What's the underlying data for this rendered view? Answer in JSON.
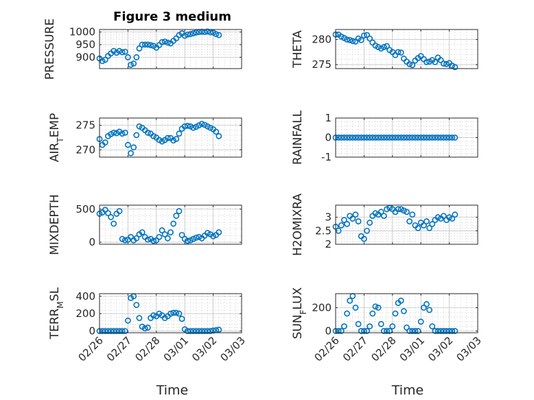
{
  "figure_title": "Figure 3 medium",
  "colors": {
    "marker": "#0072BD",
    "axis": "#262626",
    "grid": "#b8b8b8"
  },
  "chart_data": [
    {
      "type": "scatter",
      "panel": "pressure",
      "ylabel_parts": [
        {
          "t": "PRESSURE"
        }
      ],
      "yticks": [
        900,
        950,
        1000
      ],
      "ytick_labels": [
        "900",
        "950",
        "1000"
      ],
      "ylim": [
        855,
        1010
      ],
      "xticks": [
        0,
        1,
        2,
        3,
        4,
        5
      ],
      "xtick_labels": [
        "02/26",
        "02/27",
        "02/28",
        "03/01",
        "03/02",
        "03/03"
      ],
      "xlim": [
        0,
        5
      ],
      "show_xtick_labels": false,
      "x": [
        0,
        0.1,
        0.2,
        0.3,
        0.4,
        0.5,
        0.6,
        0.7,
        0.8,
        0.9,
        1,
        1.1,
        1.2,
        1.3,
        1.4,
        1.5,
        1.6,
        1.7,
        1.8,
        1.9,
        2,
        2.1,
        2.2,
        2.3,
        2.4,
        2.5,
        2.6,
        2.7,
        2.8,
        2.9,
        3,
        3.1,
        3.2,
        3.3,
        3.4,
        3.5,
        3.6,
        3.7,
        3.8,
        3.9,
        4,
        4.1,
        4.2
      ],
      "y": [
        895,
        885,
        890,
        905,
        915,
        925,
        918,
        925,
        920,
        922,
        900,
        870,
        875,
        900,
        935,
        950,
        950,
        950,
        948,
        945,
        938,
        948,
        960,
        962,
        958,
        955,
        965,
        975,
        988,
        995,
        985,
        990,
        992,
        995,
        998,
        1000,
        1001,
        1000,
        1002,
        999,
        998,
        992,
        988
      ]
    },
    {
      "type": "scatter",
      "panel": "theta",
      "ylabel_parts": [
        {
          "t": "THETA"
        }
      ],
      "yticks": [
        275,
        280
      ],
      "ytick_labels": [
        "275",
        "280"
      ],
      "ylim": [
        274.2,
        282
      ],
      "xticks": [
        0,
        1,
        2,
        3,
        4,
        5
      ],
      "xtick_labels": [
        "02/26",
        "02/27",
        "02/28",
        "03/01",
        "03/02",
        "03/03"
      ],
      "xlim": [
        0,
        5
      ],
      "show_xtick_labels": false,
      "x": [
        0,
        0.1,
        0.2,
        0.3,
        0.4,
        0.5,
        0.6,
        0.7,
        0.8,
        0.9,
        1,
        1.1,
        1.2,
        1.3,
        1.4,
        1.5,
        1.6,
        1.7,
        1.8,
        1.9,
        2,
        2.1,
        2.2,
        2.3,
        2.4,
        2.5,
        2.6,
        2.7,
        2.8,
        2.9,
        3,
        3.1,
        3.2,
        3.3,
        3.4,
        3.5,
        3.6,
        3.7,
        3.8,
        3.9,
        4,
        4.1,
        4.2
      ],
      "y": [
        281,
        281,
        280.6,
        280.3,
        280,
        279.9,
        279.7,
        279.6,
        280.2,
        279.9,
        280.8,
        280.9,
        280.2,
        279.4,
        278.8,
        278.5,
        278.2,
        278.5,
        278.7,
        277.9,
        277.5,
        276.9,
        277.5,
        277.4,
        276.2,
        275.6,
        275.1,
        274.9,
        275.8,
        276.3,
        276.7,
        276.1,
        275.5,
        275.6,
        275.9,
        275.5,
        276.4,
        275.9,
        275.2,
        275.1,
        275.3,
        274.8,
        274.5
      ]
    },
    {
      "type": "scatter",
      "panel": "air_temp",
      "ylabel_parts": [
        {
          "t": "AIR"
        },
        {
          "t": "T",
          "sub": true
        },
        {
          "t": "EMP"
        }
      ],
      "yticks": [
        270,
        275
      ],
      "ytick_labels": [
        "270",
        "275"
      ],
      "ylim": [
        268.5,
        276.5
      ],
      "xticks": [
        0,
        1,
        2,
        3,
        4,
        5
      ],
      "xtick_labels": [
        "02/26",
        "02/27",
        "02/28",
        "03/01",
        "03/02",
        "03/03"
      ],
      "xlim": [
        0,
        5
      ],
      "show_xtick_labels": false,
      "x": [
        0,
        0.1,
        0.2,
        0.3,
        0.4,
        0.5,
        0.6,
        0.7,
        0.8,
        0.9,
        1,
        1.1,
        1.2,
        1.3,
        1.4,
        1.5,
        1.6,
        1.7,
        1.8,
        1.9,
        2,
        2.1,
        2.2,
        2.3,
        2.4,
        2.5,
        2.6,
        2.7,
        2.8,
        2.9,
        3,
        3.1,
        3.2,
        3.3,
        3.4,
        3.5,
        3.6,
        3.7,
        3.8,
        3.9,
        4,
        4.1,
        4.2
      ],
      "y": [
        272.2,
        271,
        271.5,
        272.8,
        273.2,
        273.5,
        273.4,
        273.7,
        273.3,
        273.5,
        271,
        269.3,
        270.5,
        273,
        274.8,
        274.5,
        274,
        273.5,
        273.3,
        272.8,
        272.5,
        272,
        271.7,
        272,
        272.4,
        272.4,
        271.9,
        272.2,
        273.3,
        274.3,
        274.8,
        274.9,
        274.8,
        274.5,
        274.7,
        275,
        275.3,
        275.1,
        274.8,
        274.5,
        274.2,
        273.7,
        272.8
      ]
    },
    {
      "type": "scatter",
      "panel": "rainfall",
      "ylabel_parts": [
        {
          "t": "RAINFALL"
        }
      ],
      "yticks": [
        -1,
        0,
        1
      ],
      "ytick_labels": [
        "-1",
        "0",
        "1"
      ],
      "ylim": [
        -1,
        1
      ],
      "xticks": [
        0,
        1,
        2,
        3,
        4,
        5
      ],
      "xtick_labels": [
        "02/26",
        "02/27",
        "02/28",
        "03/01",
        "03/02",
        "03/03"
      ],
      "xlim": [
        0,
        5
      ],
      "show_xtick_labels": false,
      "x": [
        0,
        0.1,
        0.2,
        0.3,
        0.4,
        0.5,
        0.6,
        0.7,
        0.8,
        0.9,
        1,
        1.1,
        1.2,
        1.3,
        1.4,
        1.5,
        1.6,
        1.7,
        1.8,
        1.9,
        2,
        2.1,
        2.2,
        2.3,
        2.4,
        2.5,
        2.6,
        2.7,
        2.8,
        2.9,
        3,
        3.1,
        3.2,
        3.3,
        3.4,
        3.5,
        3.6,
        3.7,
        3.8,
        3.9,
        4,
        4.1,
        4.2
      ],
      "y": [
        0,
        0,
        0,
        0,
        0,
        0,
        0,
        0,
        0,
        0,
        0,
        0,
        0,
        0,
        0,
        0,
        0,
        0,
        0,
        0,
        0,
        0,
        0,
        0,
        0,
        0,
        0,
        0,
        0,
        0,
        0,
        0,
        0,
        0,
        0,
        0,
        0,
        0,
        0,
        0,
        0,
        0,
        0
      ]
    },
    {
      "type": "scatter",
      "panel": "mixdepth",
      "ylabel_parts": [
        {
          "t": "MIXDEPTH"
        }
      ],
      "yticks": [
        0,
        500
      ],
      "ytick_labels": [
        "0",
        "500"
      ],
      "ylim": [
        -30,
        560
      ],
      "xticks": [
        0,
        1,
        2,
        3,
        4,
        5
      ],
      "xtick_labels": [
        "02/26",
        "02/27",
        "02/28",
        "03/01",
        "03/02",
        "03/03"
      ],
      "xlim": [
        0,
        5
      ],
      "show_xtick_labels": false,
      "x": [
        0,
        0.1,
        0.2,
        0.3,
        0.4,
        0.5,
        0.6,
        0.7,
        0.8,
        0.9,
        1,
        1.1,
        1.2,
        1.3,
        1.4,
        1.5,
        1.6,
        1.7,
        1.8,
        1.9,
        2,
        2.1,
        2.2,
        2.3,
        2.4,
        2.5,
        2.6,
        2.7,
        2.8,
        2.9,
        3,
        3.1,
        3.2,
        3.3,
        3.4,
        3.5,
        3.6,
        3.7,
        3.8,
        3.9,
        4,
        4.1,
        4.2
      ],
      "y": [
        430,
        450,
        490,
        440,
        380,
        280,
        430,
        470,
        50,
        30,
        40,
        80,
        30,
        60,
        120,
        150,
        80,
        40,
        50,
        20,
        30,
        80,
        180,
        120,
        60,
        150,
        280,
        400,
        470,
        110,
        50,
        20,
        30,
        50,
        70,
        80,
        60,
        100,
        140,
        120,
        90,
        110,
        150
      ]
    },
    {
      "type": "scatter",
      "panel": "h2omixra",
      "ylabel_parts": [
        {
          "t": "H2OMIXRA"
        }
      ],
      "yticks": [
        2,
        2.5,
        3
      ],
      "ytick_labels": [
        "2",
        "2.5",
        "3"
      ],
      "ylim": [
        2,
        3.45
      ],
      "xticks": [
        0,
        1,
        2,
        3,
        4,
        5
      ],
      "xtick_labels": [
        "02/26",
        "02/27",
        "02/28",
        "03/01",
        "03/02",
        "03/03"
      ],
      "xlim": [
        0,
        5
      ],
      "show_xtick_labels": false,
      "x": [
        0,
        0.1,
        0.2,
        0.3,
        0.4,
        0.5,
        0.6,
        0.7,
        0.8,
        0.9,
        1,
        1.1,
        1.2,
        1.3,
        1.4,
        1.5,
        1.6,
        1.7,
        1.8,
        1.9,
        2,
        2.1,
        2.2,
        2.3,
        2.4,
        2.5,
        2.6,
        2.7,
        2.8,
        2.9,
        3,
        3.1,
        3.2,
        3.3,
        3.4,
        3.5,
        3.6,
        3.7,
        3.8,
        3.9,
        4,
        4.1,
        4.2
      ],
      "y": [
        2.65,
        2.5,
        2.7,
        2.9,
        2.75,
        3.05,
        2.95,
        3.1,
        2.85,
        2.3,
        2.2,
        2.5,
        2.8,
        3.05,
        3.15,
        3.1,
        3.2,
        3.05,
        3.3,
        3.35,
        3.3,
        3.2,
        3.3,
        3.3,
        3.25,
        3.2,
        2.85,
        3.1,
        2.7,
        2.6,
        2.8,
        2.7,
        2.85,
        2.6,
        2.75,
        2.9,
        3,
        2.95,
        3.05,
        2.9,
        3.0,
        2.95,
        3.1
      ]
    },
    {
      "type": "scatter",
      "panel": "terr_msl",
      "ylabel_parts": [
        {
          "t": "TERR"
        },
        {
          "t": "M",
          "sub": true
        },
        {
          "t": "SL"
        }
      ],
      "yticks": [
        0,
        200,
        400
      ],
      "ytick_labels": [
        "0",
        "200",
        "400"
      ],
      "ylim": [
        -20,
        430
      ],
      "xticks": [
        0,
        1,
        2,
        3,
        4,
        5
      ],
      "xtick_labels": [
        "02/26",
        "02/27",
        "02/28",
        "03/01",
        "03/02",
        "03/03"
      ],
      "xlim": [
        0,
        5
      ],
      "show_xtick_labels": true,
      "x": [
        0,
        0.1,
        0.2,
        0.3,
        0.4,
        0.5,
        0.6,
        0.7,
        0.8,
        0.9,
        1,
        1.1,
        1.2,
        1.3,
        1.4,
        1.5,
        1.6,
        1.7,
        1.8,
        1.9,
        2,
        2.1,
        2.2,
        2.3,
        2.4,
        2.5,
        2.6,
        2.7,
        2.8,
        2.9,
        3,
        3.1,
        3.2,
        3.3,
        3.4,
        3.5,
        3.6,
        3.7,
        3.8,
        3.9,
        4,
        4.1,
        4.2
      ],
      "y": [
        0,
        0,
        0,
        0,
        0,
        0,
        0,
        0,
        0,
        0,
        120,
        380,
        400,
        300,
        150,
        50,
        30,
        40,
        150,
        180,
        170,
        200,
        180,
        150,
        170,
        200,
        210,
        210,
        200,
        140,
        20,
        0,
        0,
        0,
        0,
        0,
        0,
        0,
        0,
        0,
        5,
        10,
        15
      ]
    },
    {
      "type": "scatter",
      "panel": "sun_flux",
      "ylabel_parts": [
        {
          "t": "SUN"
        },
        {
          "t": "F",
          "sub": true
        },
        {
          "t": "LUX"
        }
      ],
      "yticks": [
        0,
        200
      ],
      "ytick_labels": [
        "0",
        "200"
      ],
      "ylim": [
        -15,
        320
      ],
      "xticks": [
        0,
        1,
        2,
        3,
        4,
        5
      ],
      "xtick_labels": [
        "02/26",
        "02/27",
        "02/28",
        "03/01",
        "03/02",
        "03/03"
      ],
      "xlim": [
        0,
        5
      ],
      "show_xtick_labels": true,
      "x": [
        0,
        0.1,
        0.2,
        0.3,
        0.4,
        0.5,
        0.6,
        0.7,
        0.8,
        0.9,
        1,
        1.1,
        1.2,
        1.3,
        1.4,
        1.5,
        1.6,
        1.7,
        1.8,
        1.9,
        2,
        2.1,
        2.2,
        2.3,
        2.4,
        2.5,
        2.6,
        2.7,
        2.8,
        2.9,
        3,
        3.1,
        3.2,
        3.3,
        3.4,
        3.5,
        3.6,
        3.7,
        3.8,
        3.9,
        4,
        4.1,
        4.2
      ],
      "y": [
        0,
        0,
        0,
        40,
        150,
        260,
        300,
        200,
        60,
        0,
        0,
        0,
        40,
        150,
        210,
        200,
        60,
        0,
        0,
        0,
        40,
        150,
        240,
        260,
        170,
        30,
        0,
        0,
        0,
        0,
        80,
        200,
        230,
        180,
        40,
        0,
        0,
        0,
        0,
        0,
        0,
        0,
        0
      ]
    }
  ],
  "xlabel": "Time"
}
